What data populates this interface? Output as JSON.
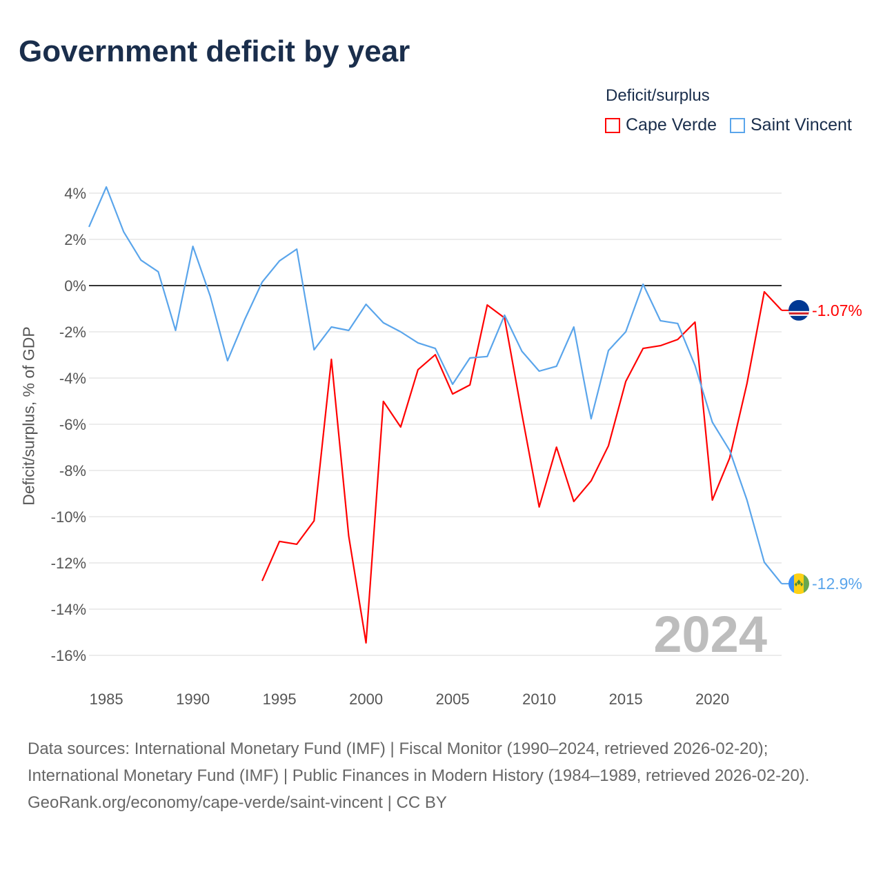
{
  "chart_data": {
    "type": "line",
    "title": "Government deficit by year",
    "ylabel": "Deficit/surplus, % of GDP",
    "xlabel": "",
    "legend_title": "Deficit/surplus",
    "legend_position": "top-right",
    "xlim": [
      1984,
      2024
    ],
    "ylim": [
      -16,
      4
    ],
    "x_ticks": [
      1985,
      1990,
      1995,
      2000,
      2005,
      2010,
      2015,
      2020
    ],
    "y_ticks": [
      4,
      2,
      0,
      -2,
      -4,
      -6,
      -8,
      -10,
      -12,
      -14,
      -16
    ],
    "y_tick_labels": [
      "4%",
      "2%",
      "0%",
      "-2%",
      "-4%",
      "-6%",
      "-8%",
      "-10%",
      "-12%",
      "-14%",
      "-16%"
    ],
    "watermark_year": "2024",
    "series": [
      {
        "name": "Cape Verde",
        "color": "#ff0000",
        "end_label": "-1.07%",
        "start_year": 1994,
        "values": [
          -12.78,
          -11.07,
          -11.19,
          -10.18,
          -3.19,
          -10.84,
          -15.46,
          -5.01,
          -6.12,
          -3.64,
          -2.99,
          -4.69,
          -4.3,
          -0.84,
          -1.4,
          -5.55,
          -9.58,
          -6.99,
          -9.34,
          -8.45,
          -6.93,
          -4.15,
          -2.72,
          -2.6,
          -2.33,
          -1.58,
          -9.28,
          -7.46,
          -4.24,
          -0.27,
          -1.07
        ]
      },
      {
        "name": "Saint Vincent",
        "color": "#5aa5eb",
        "end_label": "-12.9%",
        "start_year": 1984,
        "values": [
          2.54,
          4.27,
          2.33,
          1.1,
          0.6,
          -1.94,
          1.7,
          -0.45,
          -3.25,
          -1.46,
          0.15,
          1.07,
          1.58,
          -2.78,
          -1.79,
          -1.94,
          -0.81,
          -1.61,
          -2.0,
          -2.48,
          -2.72,
          -4.27,
          -3.13,
          -3.07,
          -1.28,
          -2.84,
          -3.7,
          -3.49,
          -1.79,
          -5.76,
          -2.81,
          -2.0,
          0.06,
          -1.52,
          -1.64,
          -3.46,
          -5.91,
          -7.13,
          -9.28,
          -11.97,
          -12.9
        ]
      }
    ]
  },
  "sources": [
    "Data sources: International Monetary Fund (IMF) | Fiscal Monitor (1990–2024, retrieved 2026-02-20); International Monetary Fund (IMF) | Public Finances in Modern History (1984–1989, retrieved 2026-02-20).",
    "GeoRank.org/economy/cape-verde/saint-vincent | CC BY"
  ]
}
